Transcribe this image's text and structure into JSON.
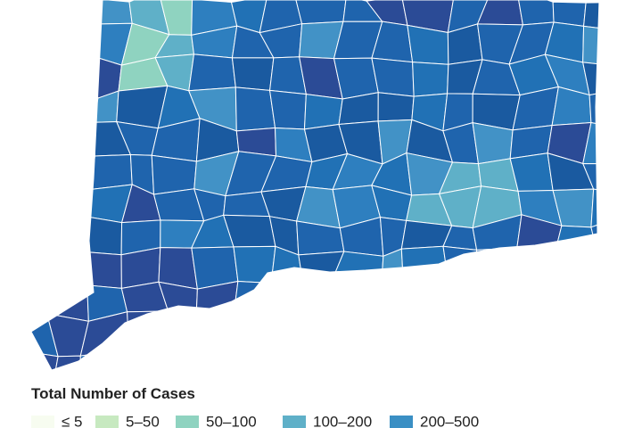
{
  "legend": {
    "title": "Total Number of Cases",
    "items": [
      {
        "label": "≤ 5",
        "color": "#f7fcf0"
      },
      {
        "label": "5–50",
        "color": "#c7e9c0"
      },
      {
        "label": "50–100",
        "color": "#8fd3c0"
      },
      {
        "label": "100–200",
        "color": "#5fb0c8"
      },
      {
        "label": "200–500",
        "color": "#3a8fc4"
      }
    ]
  }
}
